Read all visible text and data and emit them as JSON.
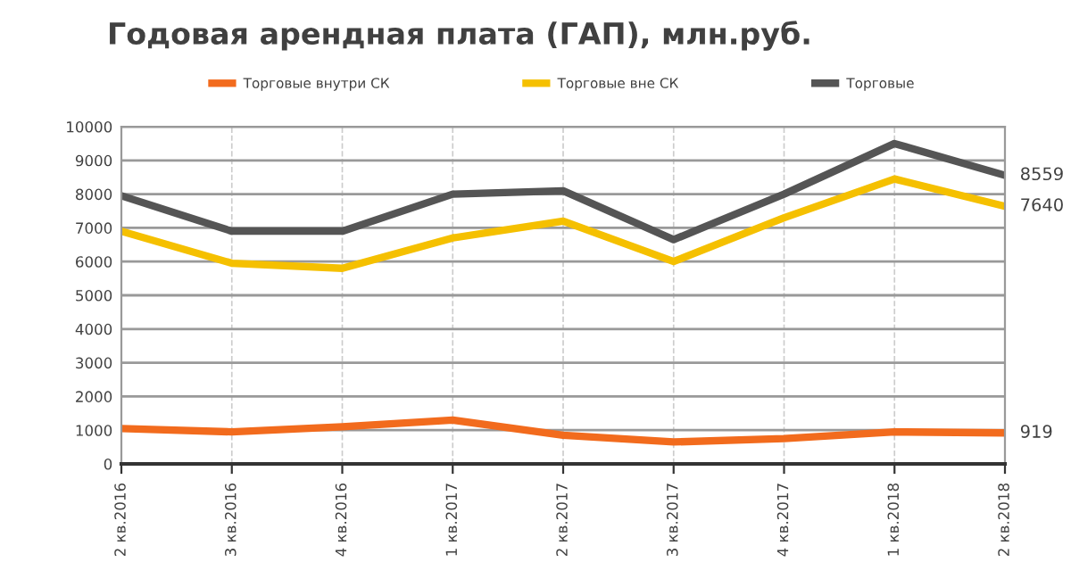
{
  "chart_data": {
    "type": "line",
    "title": "Годовая арендная плата (ГАП), млн.руб.",
    "categories": [
      "2 кв.2016",
      "3 кв.2016",
      "4 кв.2016",
      "1 кв.2017",
      "2 кв.2017",
      "3 кв.2017",
      "4 кв.2017",
      "1 кв.2018",
      "2 кв.2018"
    ],
    "series": [
      {
        "name": "Торговые внутри СК",
        "color": "#f26b1d",
        "values": [
          1050,
          950,
          1100,
          1300,
          850,
          650,
          750,
          950,
          919
        ],
        "value_labels": [
          null,
          null,
          null,
          null,
          null,
          null,
          null,
          null,
          "919"
        ]
      },
      {
        "name": "Торговые вне СК",
        "color": "#f5c000",
        "values": [
          6900,
          5950,
          5800,
          6700,
          7200,
          6000,
          7300,
          8450,
          7640
        ],
        "value_labels": [
          null,
          null,
          null,
          null,
          null,
          null,
          null,
          null,
          "7640"
        ]
      },
      {
        "name": "Торговые",
        "color": "#555555",
        "values": [
          7950,
          6900,
          6900,
          8000,
          8100,
          6650,
          8000,
          9500,
          8559
        ],
        "value_labels": [
          null,
          null,
          null,
          null,
          null,
          null,
          null,
          null,
          "8559"
        ]
      }
    ],
    "ylim": [
      0,
      10000
    ],
    "yticks": [
      0,
      1000,
      2000,
      3000,
      4000,
      5000,
      6000,
      7000,
      8000,
      9000,
      10000
    ],
    "grid": true,
    "legend": "top",
    "marker": "none",
    "line_style": "solid"
  }
}
